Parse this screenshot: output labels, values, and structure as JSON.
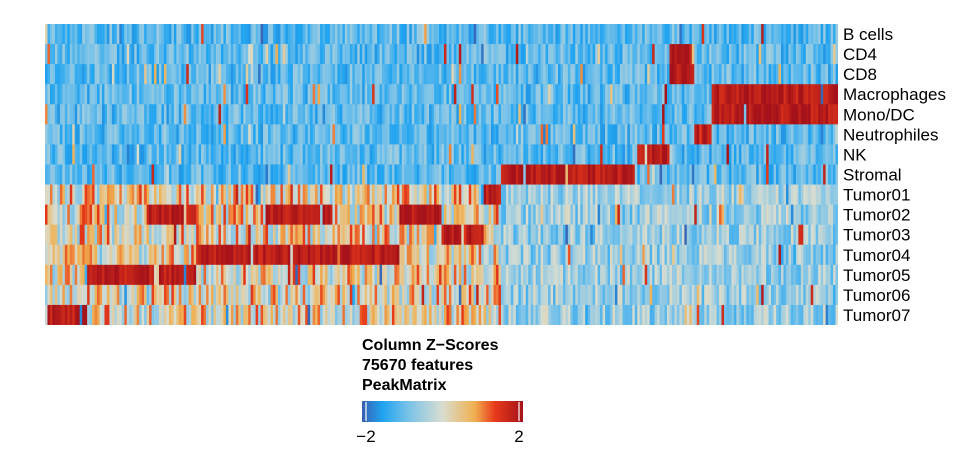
{
  "chart_data": {
    "type": "heatmap",
    "rows": [
      "B cells",
      "CD4",
      "CD8",
      "Macrophages",
      "Mono/DC",
      "Neutrophiles",
      "NK",
      "Stromal",
      "Tumor01",
      "Tumor02",
      "Tumor03",
      "Tumor04",
      "Tumor05",
      "Tumor06",
      "Tumor07"
    ],
    "n_columns": 75670,
    "value_type": "Column Z-Scores",
    "value_range": [
      -2,
      2
    ],
    "column_blocks": [
      {
        "high_rows": [
          "Tumor07"
        ],
        "share": 0.05
      },
      {
        "high_rows": [
          "Tumor05"
        ],
        "share": 0.07
      },
      {
        "high_rows": [
          "Tumor05",
          "Tumor02"
        ],
        "share": 0.06
      },
      {
        "high_rows": [
          "Tumor04"
        ],
        "share": 0.08
      },
      {
        "high_rows": [
          "Tumor04",
          "Tumor02"
        ],
        "share": 0.08
      },
      {
        "high_rows": [
          "Tumor04"
        ],
        "share": 0.08
      },
      {
        "high_rows": [
          "Tumor02"
        ],
        "share": 0.05
      },
      {
        "high_rows": [
          "Tumor03"
        ],
        "share": 0.05
      },
      {
        "high_rows": [
          "Tumor01"
        ],
        "share": 0.02
      },
      {
        "high_rows": [
          "Stromal"
        ],
        "share": 0.16
      },
      {
        "high_rows": [
          "NK"
        ],
        "share": 0.04
      },
      {
        "high_rows": [
          "CD4",
          "CD8"
        ],
        "share": 0.03
      },
      {
        "high_rows": [
          "Neutrophiles"
        ],
        "share": 0.02
      },
      {
        "high_rows": [
          "Macrophages",
          "Mono/DC"
        ],
        "share": 0.15
      }
    ],
    "colorscale": [
      {
        "z": -2,
        "color": "#3a5fb0"
      },
      {
        "z": -1.5,
        "color": "#1ea3f0"
      },
      {
        "z": -0.8,
        "color": "#7fc4e8"
      },
      {
        "z": 0,
        "color": "#d9ddd0"
      },
      {
        "z": 0.8,
        "color": "#f0b050"
      },
      {
        "z": 1.3,
        "color": "#e83a1a"
      },
      {
        "z": 2,
        "color": "#a5121a"
      }
    ]
  },
  "legend": {
    "title_line1": "Column Z−Scores",
    "title_line2": "75670 features",
    "title_line3": "PeakMatrix",
    "tick_min": "−2",
    "tick_max": "2"
  }
}
